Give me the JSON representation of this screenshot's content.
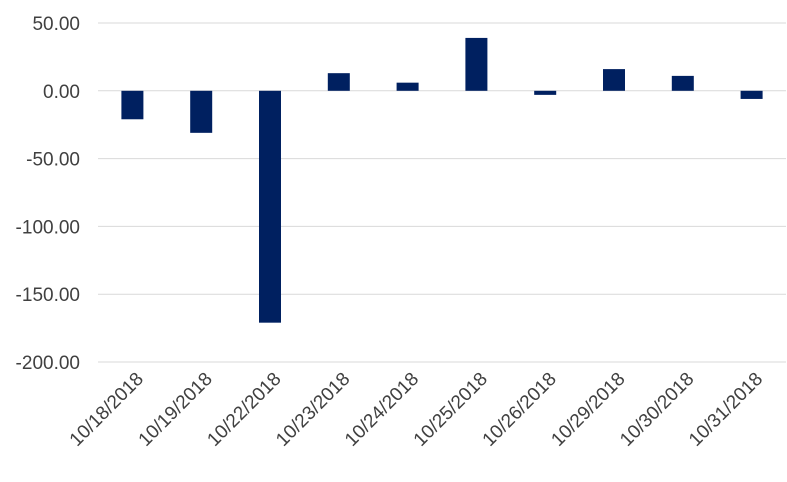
{
  "chart_data": {
    "type": "bar",
    "title": "",
    "xlabel": "",
    "ylabel": "",
    "categories": [
      "10/18/2018",
      "10/19/2018",
      "10/22/2018",
      "10/23/2018",
      "10/24/2018",
      "10/25/2018",
      "10/26/2018",
      "10/29/2018",
      "10/30/2018",
      "10/31/2018"
    ],
    "values": [
      -21,
      -31,
      -171,
      13,
      6,
      39,
      -3,
      16,
      11,
      -6
    ],
    "ylim": [
      -200,
      50
    ],
    "yticks": [
      50,
      0,
      -50,
      -100,
      -150,
      -200
    ],
    "ytick_labels": [
      "50.00",
      "0.00",
      "-50.00",
      "-100.00",
      "-150.00",
      "-200.00"
    ],
    "grid": true,
    "legend": "none",
    "bar_color": "#002060",
    "grid_color": "#d9d9d9",
    "text_color": "#404040"
  }
}
